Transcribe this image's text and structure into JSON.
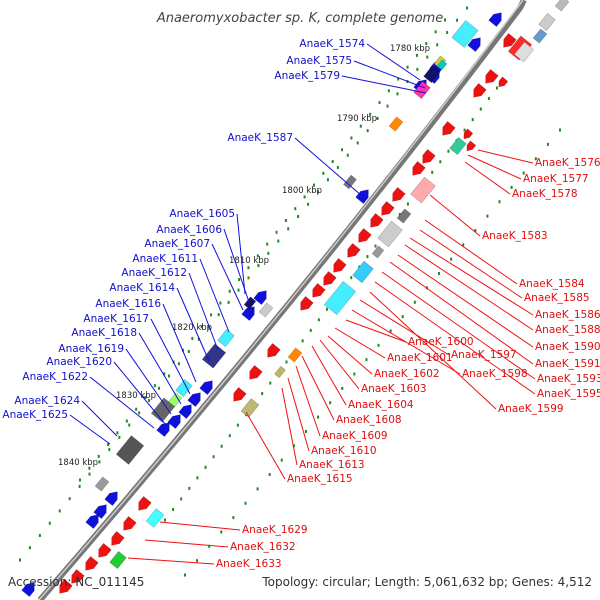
{
  "title": "Anaeromyxobacter sp. K, complete genome",
  "footer": {
    "accession": "Accession: NC_011145",
    "summary": "Topology: circular; Length: 5,061,632 bp; Genes: 4,512"
  },
  "scale_labels": [
    "1780 kbp",
    "1790 kbp",
    "1800 kbp",
    "1810 kbp",
    "1820 kbp",
    "1830 kbp",
    "1840 kbp"
  ],
  "gene_labels_left": [
    "AnaeK_1574",
    "AnaeK_1575",
    "AnaeK_1579",
    "AnaeK_1587",
    "AnaeK_1605",
    "AnaeK_1606",
    "AnaeK_1607",
    "AnaeK_1611",
    "AnaeK_1612",
    "AnaeK_1614",
    "AnaeK_1616",
    "AnaeK_1617",
    "AnaeK_1618",
    "AnaeK_1619",
    "AnaeK_1620",
    "AnaeK_1622",
    "AnaeK_1624",
    "AnaeK_1625"
  ],
  "gene_labels_right": [
    "AnaeK_1576",
    "AnaeK_1577",
    "AnaeK_1578",
    "AnaeK_1583",
    "AnaeK_1584",
    "AnaeK_1585",
    "AnaeK_1586",
    "AnaeK_1588",
    "AnaeK_1590",
    "AnaeK_1591",
    "AnaeK_1593",
    "AnaeK_1595",
    "AnaeK_1599",
    "AnaeK_1597",
    "AnaeK_1598",
    "AnaeK_1600",
    "AnaeK_1601",
    "AnaeK_1602",
    "AnaeK_1603",
    "AnaeK_1604",
    "AnaeK_1608",
    "AnaeK_1609",
    "AnaeK_1610",
    "AnaeK_1613",
    "AnaeK_1615",
    "AnaeK_1629",
    "AnaeK_1632",
    "AnaeK_1633"
  ],
  "colors": {
    "forward": "#ee1111",
    "reverse": "#1010dd",
    "backbone": "#888888",
    "scale_dots": "#228822"
  }
}
